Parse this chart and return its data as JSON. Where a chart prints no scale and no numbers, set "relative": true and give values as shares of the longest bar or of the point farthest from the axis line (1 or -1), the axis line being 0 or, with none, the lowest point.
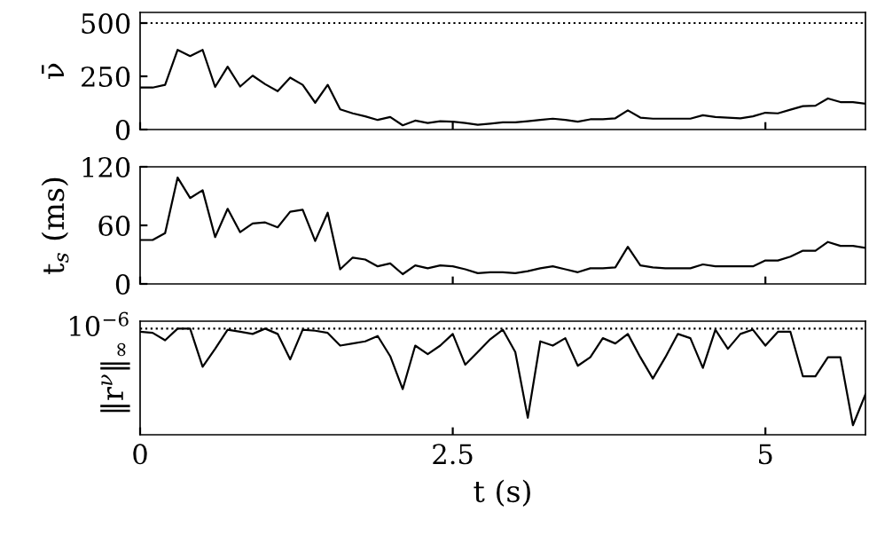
{
  "chart_data": [
    {
      "type": "line",
      "ylabel": "ν̄",
      "x": [
        0,
        0.1,
        0.2,
        0.3,
        0.4,
        0.5,
        0.6,
        0.7,
        0.8,
        0.9,
        1.0,
        1.1,
        1.2,
        1.3,
        1.4,
        1.5,
        1.6,
        1.7,
        1.8,
        1.9,
        2.0,
        2.1,
        2.2,
        2.3,
        2.4,
        2.5,
        2.6,
        2.7,
        2.8,
        2.9,
        3.0,
        3.1,
        3.2,
        3.3,
        3.4,
        3.5,
        3.6,
        3.7,
        3.8,
        3.9,
        4.0,
        4.1,
        4.2,
        4.3,
        4.4,
        4.5,
        4.6,
        4.7,
        4.8,
        4.9,
        5.0,
        5.1,
        5.2,
        5.3,
        5.4,
        5.5,
        5.6,
        5.7,
        5.8
      ],
      "series": [
        {
          "color": "#000000",
          "values": [
            197,
            197,
            210,
            374,
            345,
            374,
            200,
            295,
            202,
            253,
            213,
            180,
            244,
            210,
            126,
            210,
            95,
            76,
            62,
            45,
            59,
            20,
            42,
            31,
            39,
            37,
            31,
            22,
            28,
            34,
            34,
            39,
            45,
            51,
            45,
            37,
            48,
            48,
            53,
            90,
            56,
            51,
            51,
            51,
            51,
            67,
            59,
            56,
            53,
            62,
            79,
            76,
            93,
            110,
            112,
            146,
            129,
            129,
            121
          ]
        }
      ],
      "xlim": [
        0,
        5.8
      ],
      "xticks": [
        0,
        2.5,
        5
      ],
      "ylim": [
        0,
        550
      ],
      "yticks": [
        0,
        250,
        500
      ],
      "tick_labels": "y",
      "ref_lines": [
        {
          "axis": "y",
          "value": 500,
          "line_style": "dotted",
          "color": "#000000"
        }
      ]
    },
    {
      "type": "line",
      "ylabel": "t$_{s}$ (ms)",
      "x": [
        0,
        0.1,
        0.2,
        0.3,
        0.4,
        0.5,
        0.6,
        0.7,
        0.8,
        0.9,
        1.0,
        1.1,
        1.2,
        1.3,
        1.4,
        1.5,
        1.6,
        1.7,
        1.8,
        1.9,
        2.0,
        2.1,
        2.2,
        2.3,
        2.4,
        2.5,
        2.6,
        2.7,
        2.8,
        2.9,
        3.0,
        3.1,
        3.2,
        3.3,
        3.4,
        3.5,
        3.6,
        3.7,
        3.8,
        3.9,
        4.0,
        4.1,
        4.2,
        4.3,
        4.4,
        4.5,
        4.6,
        4.7,
        4.8,
        4.9,
        5.0,
        5.1,
        5.2,
        5.3,
        5.4,
        5.5,
        5.6,
        5.7,
        5.8
      ],
      "series": [
        {
          "color": "#000000",
          "values": [
            45,
            45,
            52,
            109,
            88,
            96,
            48,
            77,
            53,
            62,
            63,
            58,
            74,
            76,
            44,
            73,
            15,
            27,
            25,
            18,
            21,
            10,
            19,
            16,
            19,
            18,
            15,
            11,
            12,
            12,
            11,
            13,
            16,
            18,
            15,
            12,
            16,
            16,
            17,
            38,
            19,
            17,
            16,
            16,
            16,
            20,
            18,
            18,
            18,
            18,
            24,
            24,
            28,
            34,
            34,
            43,
            39,
            39,
            37
          ]
        }
      ],
      "xlim": [
        0,
        5.8
      ],
      "xticks": [
        0,
        2.5,
        5
      ],
      "ylim": [
        0,
        120
      ],
      "yticks": [
        0,
        60,
        120
      ],
      "tick_labels": "y"
    },
    {
      "type": "line",
      "ylabel": "‖r$^{ν}$‖$_{∞}$",
      "xlabel": "t (s)",
      "x": [
        0,
        0.1,
        0.2,
        0.3,
        0.4,
        0.5,
        0.6,
        0.7,
        0.8,
        0.9,
        1.0,
        1.1,
        1.2,
        1.3,
        1.4,
        1.5,
        1.6,
        1.7,
        1.8,
        1.9,
        2.0,
        2.1,
        2.2,
        2.3,
        2.4,
        2.5,
        2.6,
        2.7,
        2.8,
        2.9,
        3.0,
        3.1,
        3.2,
        3.3,
        3.4,
        3.5,
        3.6,
        3.7,
        3.8,
        3.9,
        4.0,
        4.1,
        4.2,
        4.3,
        4.4,
        4.5,
        4.6,
        4.7,
        4.8,
        4.9,
        5.0,
        5.1,
        5.2,
        5.3,
        5.4,
        5.5,
        5.6,
        5.7,
        5.8
      ],
      "series": [
        {
          "color": "#000000",
          "values": [
            0.97,
            0.96,
            0.89,
            1,
            1,
            0.64,
            0.81,
            0.99,
            0.97,
            0.95,
            1,
            0.95,
            0.71,
            0.99,
            0.98,
            0.96,
            0.84,
            0.86,
            0.88,
            0.93,
            0.74,
            0.43,
            0.84,
            0.76,
            0.84,
            0.95,
            0.66,
            0.78,
            0.9,
            0.99,
            0.78,
            0.16,
            0.88,
            0.84,
            0.91,
            0.65,
            0.73,
            0.91,
            0.86,
            0.95,
            0.73,
            0.53,
            0.73,
            0.95,
            0.91,
            0.63,
            0.99,
            0.81,
            0.95,
            0.99,
            0.84,
            0.97,
            0.97,
            0.55,
            0.55,
            0.73,
            0.73,
            0.09,
            0.38
          ]
        }
      ],
      "relative": true,
      "xlim": [
        0,
        5.8
      ],
      "xticks": [
        0,
        2.5,
        5
      ],
      "annotations": [
        "10$^{−6}$"
      ],
      "ref_lines": [
        {
          "axis": "y",
          "value": 1,
          "line_style": "dotted",
          "color": "#000000"
        }
      ]
    }
  ]
}
